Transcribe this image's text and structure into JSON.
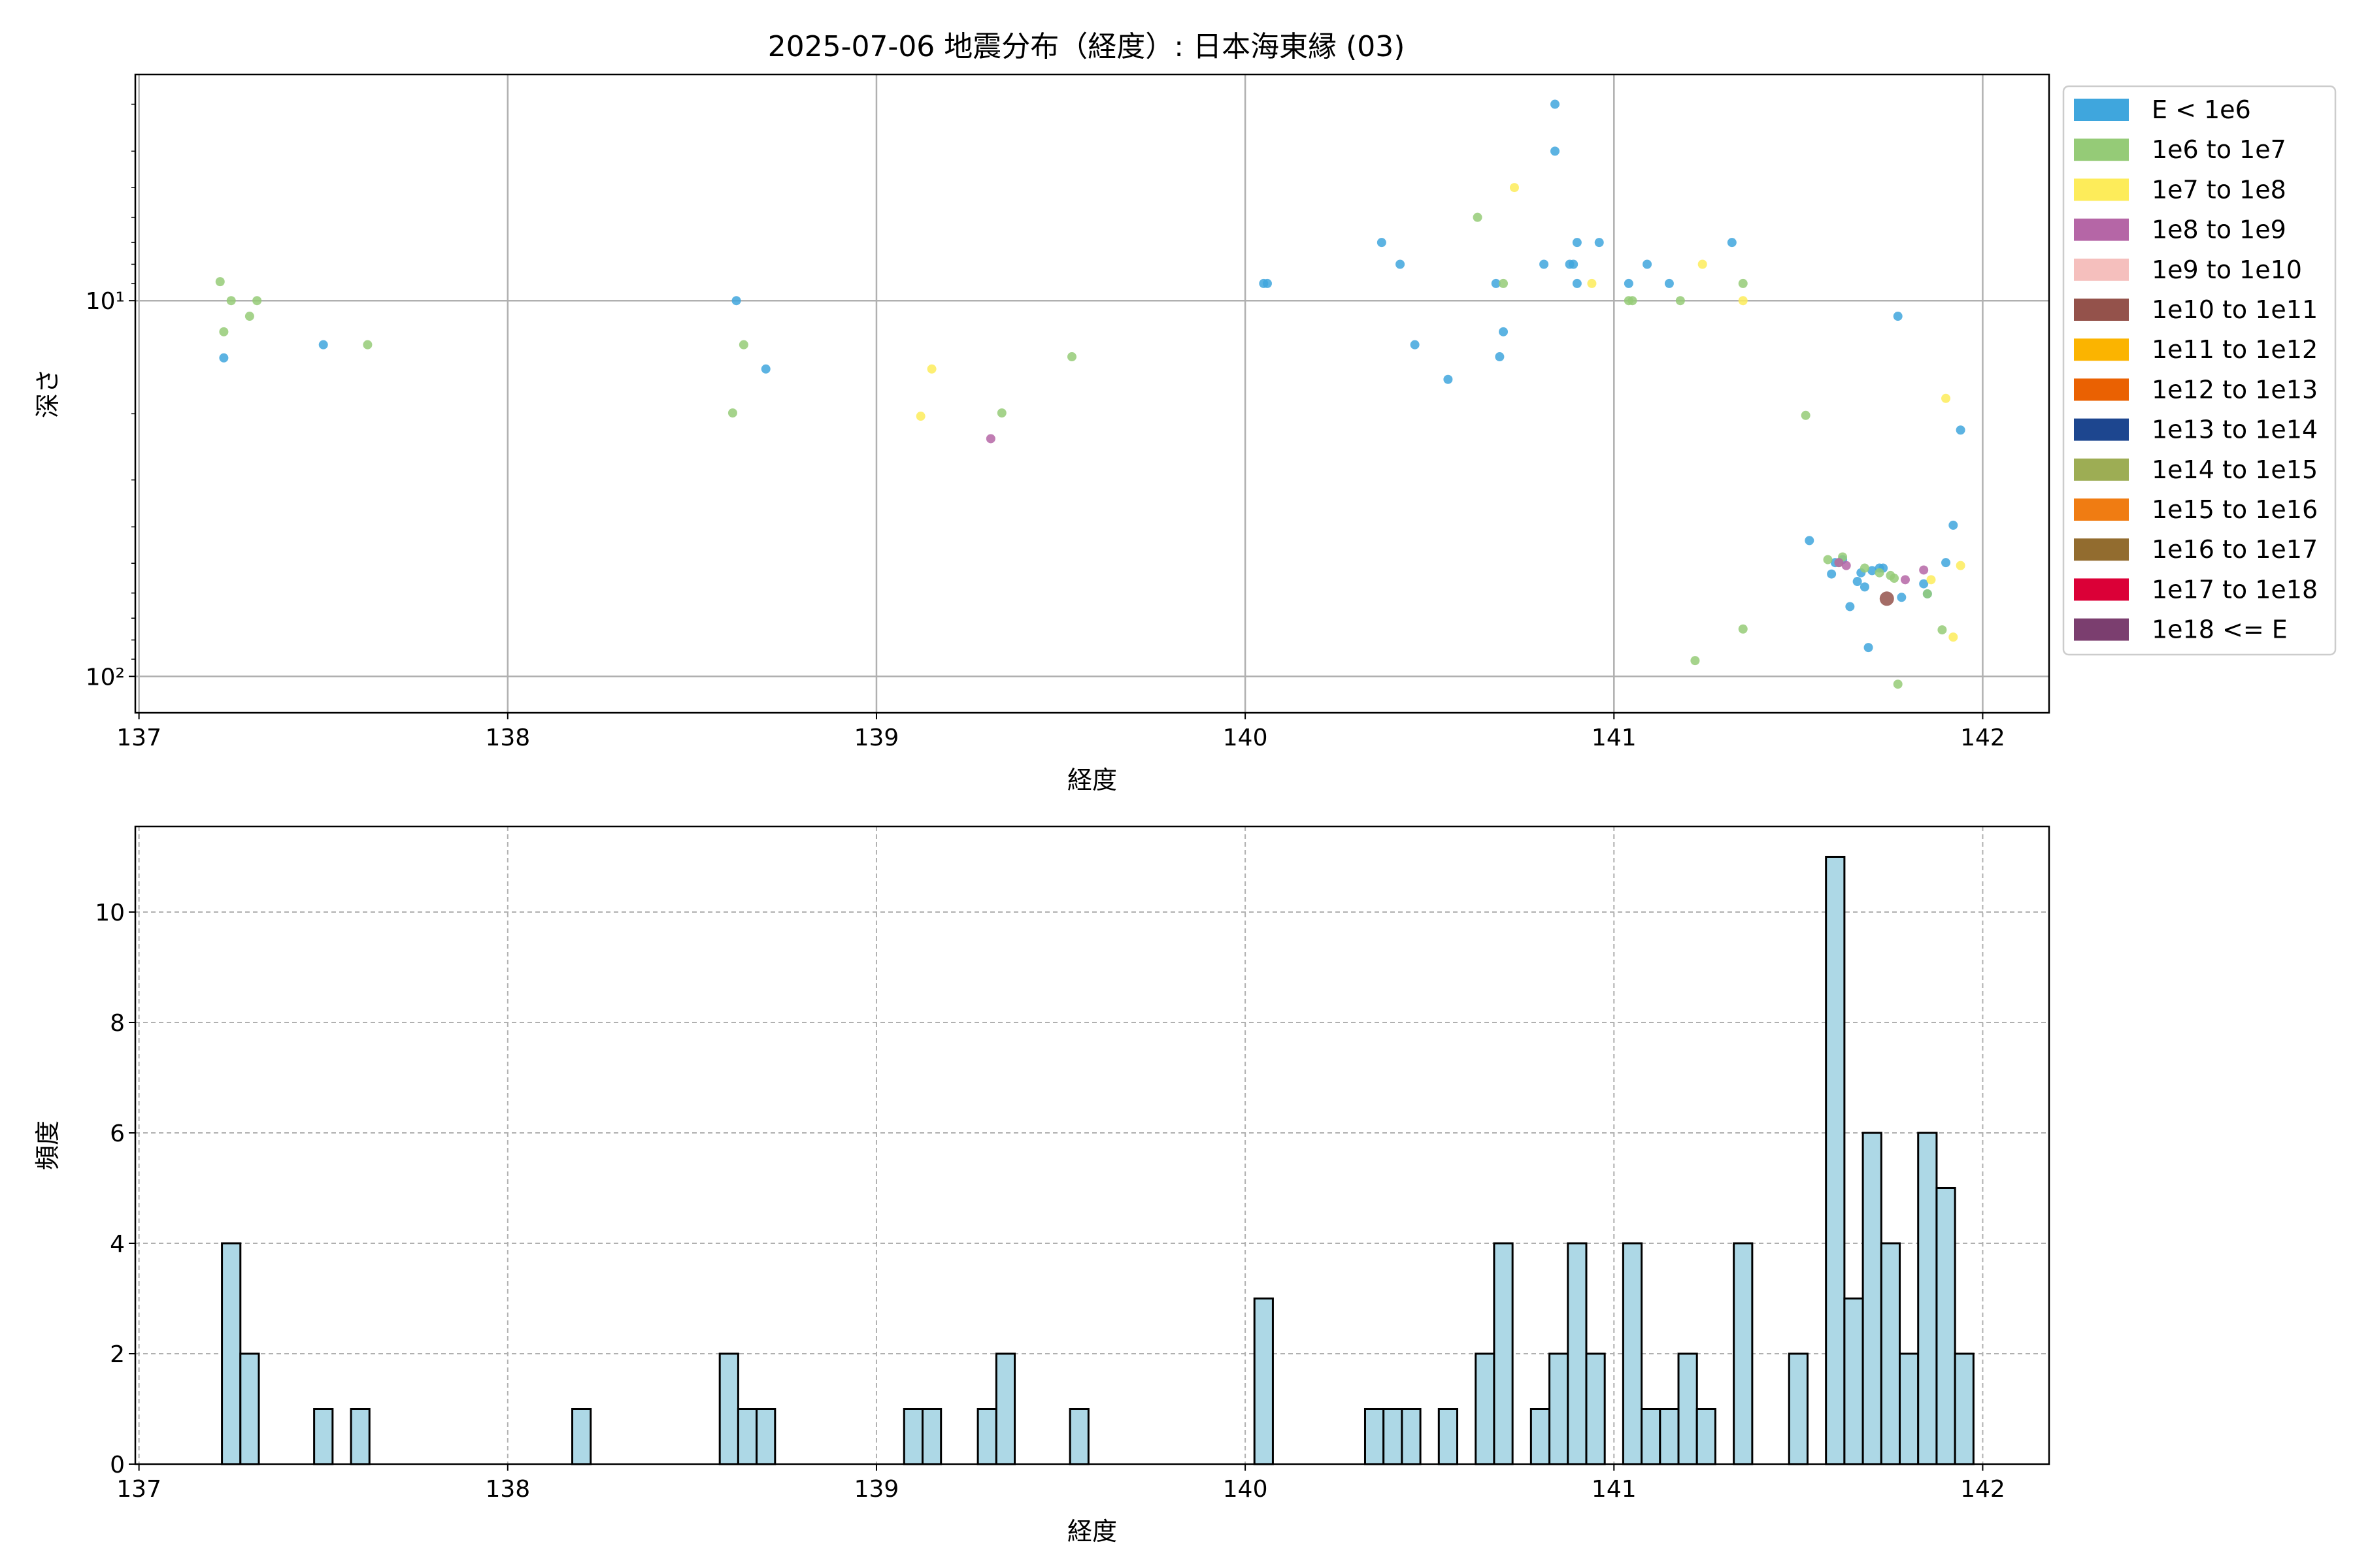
{
  "figure": {
    "title": "2025-07-06 地震分布（経度）: 日本海東縁 (03)"
  },
  "legend": {
    "placement": "outside right, top",
    "entries": [
      {
        "label": "E < 1e6",
        "color": "#3fa6dd"
      },
      {
        "label": "1e6 to 1e7",
        "color": "#95cb77"
      },
      {
        "label": "1e7 to 1e8",
        "color": "#fdec5a"
      },
      {
        "label": "1e8 to 1e9",
        "color": "#b566a6"
      },
      {
        "label": "1e9 to 1e10",
        "color": "#f5bfbd"
      },
      {
        "label": "1e10 to 1e11",
        "color": "#94524b"
      },
      {
        "label": "1e11 to 1e12",
        "color": "#fbb400"
      },
      {
        "label": "1e12 to 1e13",
        "color": "#ea6102"
      },
      {
        "label": "1e13 to 1e14",
        "color": "#1d468f"
      },
      {
        "label": "1e14 to 1e15",
        "color": "#9dad54"
      },
      {
        "label": "1e15 to 1e16",
        "color": "#f07c12"
      },
      {
        "label": "1e16 to 1e17",
        "color": "#926c2f"
      },
      {
        "label": "1e17 to 1e18",
        "color": "#db0037"
      },
      {
        "label": "1e18 <= E",
        "color": "#7b3e6f"
      }
    ]
  },
  "chart_data": [
    {
      "type": "scatter",
      "xlabel": "経度",
      "ylabel": "深さ",
      "xlim": [
        136.99,
        142.18
      ],
      "ylim": [
        125,
        2.5
      ],
      "y_scale": "log",
      "y_inverted": true,
      "grid": true,
      "x_ticks": [
        137,
        138,
        139,
        140,
        141,
        142
      ],
      "x_tick_labels": [
        "137",
        "138",
        "139",
        "140",
        "141",
        "142"
      ],
      "y_ticks": [
        10,
        100
      ],
      "y_tick_labels": [
        "10¹",
        "10²"
      ],
      "series": [
        {
          "name": "E < 1e6",
          "color": "#3fa6dd",
          "points": [
            [
              137.23,
              14.2
            ],
            [
              137.5,
              13.1
            ],
            [
              138.62,
              10.0
            ],
            [
              138.7,
              15.2
            ],
            [
              140.05,
              9.0
            ],
            [
              140.06,
              9.0
            ],
            [
              140.37,
              7.0
            ],
            [
              140.42,
              8.0
            ],
            [
              140.46,
              13.1
            ],
            [
              140.55,
              16.2
            ],
            [
              140.68,
              9.0
            ],
            [
              140.69,
              14.1
            ],
            [
              140.7,
              12.1
            ],
            [
              140.81,
              8.0
            ],
            [
              140.84,
              3.0
            ],
            [
              140.84,
              4.0
            ],
            [
              140.88,
              8.0
            ],
            [
              140.89,
              8.0
            ],
            [
              140.9,
              7.0
            ],
            [
              140.9,
              9.0
            ],
            [
              140.96,
              7.0
            ],
            [
              141.04,
              9.0
            ],
            [
              141.09,
              8.0
            ],
            [
              141.15,
              9.0
            ],
            [
              141.32,
              7.0
            ],
            [
              141.53,
              43.5
            ],
            [
              141.59,
              53.4
            ],
            [
              141.6,
              49.8
            ],
            [
              141.62,
              48.9
            ],
            [
              141.64,
              65.2
            ],
            [
              141.66,
              55.9
            ],
            [
              141.67,
              53.0
            ],
            [
              141.68,
              57.8
            ],
            [
              141.69,
              83.8
            ],
            [
              141.7,
              52.3
            ],
            [
              141.72,
              51.5
            ],
            [
              141.73,
              51.5
            ],
            [
              141.77,
              11.0
            ],
            [
              141.78,
              61.6
            ],
            [
              141.84,
              56.7
            ],
            [
              141.85,
              60.3
            ],
            [
              141.9,
              49.8
            ],
            [
              141.92,
              39.6
            ],
            [
              141.94,
              22.1
            ]
          ]
        },
        {
          "name": "1e6 to 1e7",
          "color": "#95cb77",
          "points": [
            [
              137.22,
              8.9
            ],
            [
              137.23,
              12.1
            ],
            [
              137.25,
              10.0
            ],
            [
              137.3,
              11.0
            ],
            [
              137.32,
              10.0
            ],
            [
              137.62,
              13.1
            ],
            [
              138.61,
              19.9
            ],
            [
              138.64,
              13.1
            ],
            [
              139.34,
              19.9
            ],
            [
              139.53,
              14.1
            ],
            [
              140.63,
              6.0
            ],
            [
              140.7,
              9.0
            ],
            [
              141.04,
              10.0
            ],
            [
              141.05,
              10.0
            ],
            [
              141.18,
              10.0
            ],
            [
              141.22,
              90.8
            ],
            [
              141.35,
              9.0
            ],
            [
              141.35,
              74.8
            ],
            [
              141.52,
              20.2
            ],
            [
              141.58,
              48.9
            ],
            [
              141.61,
              49.8
            ],
            [
              141.62,
              48.1
            ],
            [
              141.68,
              51.5
            ],
            [
              141.72,
              53.0
            ],
            [
              141.75,
              53.9
            ],
            [
              141.76,
              54.8
            ],
            [
              141.77,
              104.9
            ],
            [
              141.85,
              60.3
            ],
            [
              141.89,
              75.2
            ]
          ]
        },
        {
          "name": "1e7 to 1e8",
          "color": "#fdec5a",
          "points": [
            [
              139.12,
              20.3
            ],
            [
              139.15,
              15.2
            ],
            [
              140.73,
              5.0
            ],
            [
              140.94,
              9.0
            ],
            [
              141.24,
              8.0
            ],
            [
              141.35,
              10.0
            ],
            [
              141.86,
              55.3
            ],
            [
              141.9,
              18.2
            ],
            [
              141.92,
              78.6
            ],
            [
              141.94,
              50.7
            ]
          ]
        },
        {
          "name": "1e8 to 1e9",
          "color": "#b566a6",
          "points": [
            [
              139.31,
              23.3
            ],
            [
              141.61,
              49.8
            ],
            [
              141.63,
              50.7
            ],
            [
              141.79,
              55.3
            ],
            [
              141.84,
              52.1
            ]
          ]
        },
        {
          "name": "1e10 to 1e11",
          "color": "#94524b",
          "points": [
            [
              141.74,
              62.1
            ]
          ]
        }
      ]
    },
    {
      "type": "bar",
      "xlabel": "経度",
      "ylabel": "頻度",
      "xlim": [
        136.99,
        142.18
      ],
      "ylim": [
        0,
        11.55
      ],
      "grid": true,
      "grid_style": "dashed",
      "bar_color": "#add8e6",
      "bin_width": 0.05,
      "x_ticks": [
        137,
        138,
        139,
        140,
        141,
        142
      ],
      "x_tick_labels": [
        "137",
        "138",
        "139",
        "140",
        "141",
        "142"
      ],
      "y_ticks": [
        0,
        2,
        4,
        6,
        8,
        10
      ],
      "y_tick_labels": [
        "0",
        "2",
        "4",
        "6",
        "8",
        "10"
      ],
      "bins_left": [
        137.225,
        137.275,
        137.475,
        137.575,
        138.175,
        138.575,
        138.625,
        138.675,
        139.075,
        139.125,
        139.275,
        139.325,
        139.525,
        140.025,
        140.325,
        140.375,
        140.425,
        140.525,
        140.625,
        140.675,
        140.775,
        140.825,
        140.875,
        140.925,
        141.025,
        141.075,
        141.125,
        141.175,
        141.225,
        141.325,
        141.475,
        141.575,
        141.625,
        141.675,
        141.725,
        141.775,
        141.825,
        141.875,
        141.925
      ],
      "values": [
        4,
        2,
        1,
        1,
        1,
        2,
        1,
        1,
        1,
        1,
        1,
        2,
        1,
        3,
        1,
        1,
        1,
        1,
        2,
        4,
        1,
        2,
        4,
        2,
        4,
        1,
        1,
        2,
        1,
        4,
        2,
        11,
        3,
        6,
        4,
        2,
        6,
        5,
        2
      ]
    }
  ]
}
